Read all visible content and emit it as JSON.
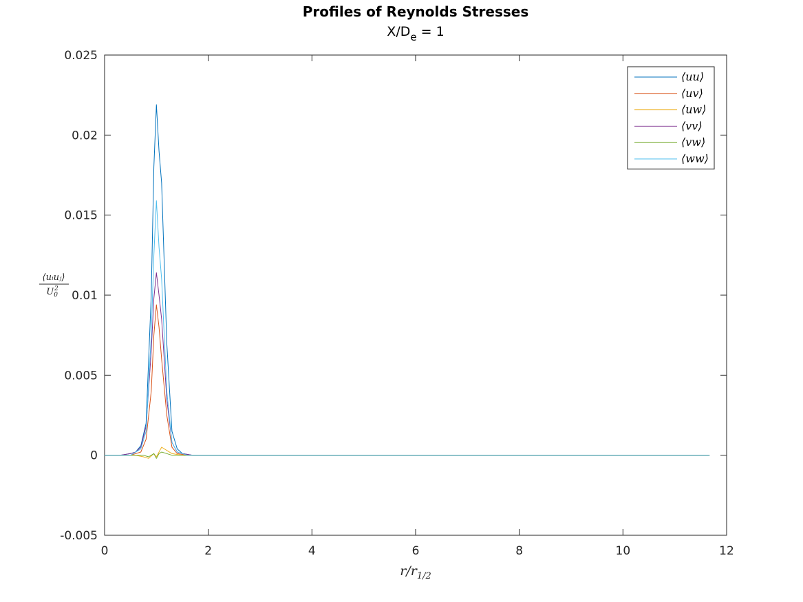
{
  "chart_data": {
    "type": "line",
    "title": "Profiles of Reynolds Stresses",
    "subtitle_main": "X/D",
    "subtitle_sub": "e",
    "subtitle_rest": " = 1",
    "xlabel_main": "r/r",
    "xlabel_sub": "1/2",
    "ylabel_num": "⟨uᵢuⱼ⟩",
    "ylabel_den": "U",
    "ylabel_den_sub": "0",
    "ylabel_den_sup": "2",
    "xlim": [
      0,
      12
    ],
    "ylim": [
      -0.005,
      0.025
    ],
    "xticks": [
      0,
      2,
      4,
      6,
      8,
      10,
      12
    ],
    "xtick_labels": [
      "0",
      "2",
      "4",
      "6",
      "8",
      "10",
      "12"
    ],
    "yticks": [
      -0.005,
      0,
      0.005,
      0.01,
      0.015,
      0.02,
      0.025
    ],
    "ytick_labels": [
      "-0.005",
      "0",
      "0.005",
      "0.01",
      "0.015",
      "0.02",
      "0.025"
    ],
    "grid": false,
    "legend_position": "top-right",
    "series": [
      {
        "name": "⟨uu⟩",
        "color": "#0072BD",
        "x": [
          0,
          0.3,
          0.5,
          0.6,
          0.7,
          0.8,
          0.9,
          0.95,
          1.0,
          1.05,
          1.1,
          1.2,
          1.3,
          1.4,
          1.5,
          1.7,
          2.0,
          11.67
        ],
        "y": [
          0,
          0,
          0.0001,
          0.0002,
          0.0006,
          0.002,
          0.01,
          0.018,
          0.0219,
          0.019,
          0.017,
          0.007,
          0.0015,
          0.0004,
          0.0001,
          0,
          0,
          0
        ]
      },
      {
        "name": "⟨uv⟩",
        "color": "#D95319",
        "x": [
          0,
          0.5,
          0.7,
          0.8,
          0.9,
          0.95,
          1.0,
          1.05,
          1.1,
          1.2,
          1.3,
          1.4,
          1.6,
          2.0,
          11.67
        ],
        "y": [
          0,
          0,
          0.0002,
          0.001,
          0.004,
          0.0075,
          0.0094,
          0.008,
          0.006,
          0.0025,
          0.0005,
          0.0001,
          0,
          0,
          0
        ]
      },
      {
        "name": "⟨uw⟩",
        "color": "#EDB120",
        "x": [
          0,
          0.6,
          0.75,
          0.85,
          0.95,
          1.0,
          1.05,
          1.1,
          1.2,
          1.3,
          1.5,
          2.0,
          11.67
        ],
        "y": [
          0,
          0,
          -0.0001,
          -0.0002,
          0.0001,
          -0.0001,
          0.0002,
          0.0005,
          0.0003,
          0.0001,
          0,
          0,
          0
        ]
      },
      {
        "name": "⟨vv⟩",
        "color": "#7E2F8E",
        "x": [
          0,
          0.3,
          0.5,
          0.6,
          0.7,
          0.8,
          0.9,
          0.95,
          1.0,
          1.05,
          1.1,
          1.2,
          1.3,
          1.4,
          1.5,
          1.7,
          2.0,
          11.67
        ],
        "y": [
          0,
          0,
          0.0001,
          0.0002,
          0.0005,
          0.0018,
          0.0065,
          0.0098,
          0.0114,
          0.01,
          0.0085,
          0.0035,
          0.0008,
          0.0002,
          0.0001,
          0,
          0,
          0
        ]
      },
      {
        "name": "⟨vw⟩",
        "color": "#77AC30",
        "x": [
          0,
          0.6,
          0.75,
          0.85,
          0.95,
          1.0,
          1.05,
          1.1,
          1.2,
          1.3,
          1.5,
          2.0,
          11.67
        ],
        "y": [
          0,
          0,
          0,
          -0.0001,
          0.0001,
          -0.0002,
          0.0001,
          0.0002,
          0.0001,
          0,
          0,
          0,
          0
        ]
      },
      {
        "name": "⟨ww⟩",
        "color": "#4DBEEE",
        "x": [
          0,
          0.5,
          0.7,
          0.8,
          0.9,
          0.95,
          1.0,
          1.05,
          1.1,
          1.2,
          1.3,
          1.4,
          1.6,
          2.0,
          11.67
        ],
        "y": [
          0,
          0,
          0.0004,
          0.0015,
          0.0075,
          0.0125,
          0.0159,
          0.013,
          0.011,
          0.004,
          0.0008,
          0.0002,
          0,
          0,
          0
        ]
      }
    ]
  }
}
